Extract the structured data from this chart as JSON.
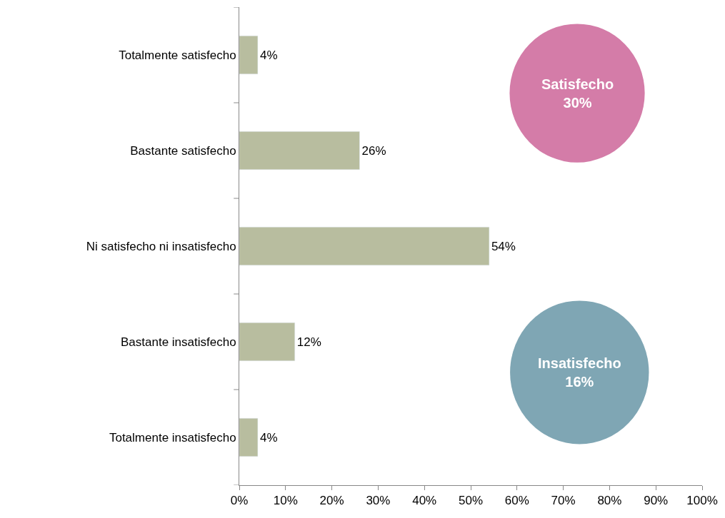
{
  "chart_data": {
    "type": "bar",
    "orientation": "horizontal",
    "categories": [
      "Totalmente satisfecho",
      "Bastante satisfecho",
      "Ni satisfecho ni insatisfecho",
      "Bastante insatisfecho",
      "Totalmente insatisfecho"
    ],
    "values": [
      4,
      26,
      54,
      12,
      4
    ],
    "color": "#b8bd9f",
    "data_labels": true,
    "value_labels": [
      "4%",
      "26%",
      "54%",
      "12%",
      "4%"
    ],
    "xlim": [
      0,
      100
    ],
    "xticks": [
      {
        "value": 0,
        "label": "0%"
      },
      {
        "value": 10,
        "label": "10%"
      },
      {
        "value": 20,
        "label": "20%"
      },
      {
        "value": 30,
        "label": "30%"
      },
      {
        "value": 40,
        "label": "40%"
      },
      {
        "value": 50,
        "label": "50%"
      },
      {
        "value": 60,
        "label": "60%"
      },
      {
        "value": 70,
        "label": "70%"
      },
      {
        "value": 80,
        "label": "80%"
      },
      {
        "value": 90,
        "label": "90%"
      },
      {
        "value": 100,
        "label": "100%"
      }
    ],
    "grid": false,
    "legend": false,
    "annotations": [
      "Satisfecho\n30%",
      "Insatisfecho\n16%"
    ]
  }
}
